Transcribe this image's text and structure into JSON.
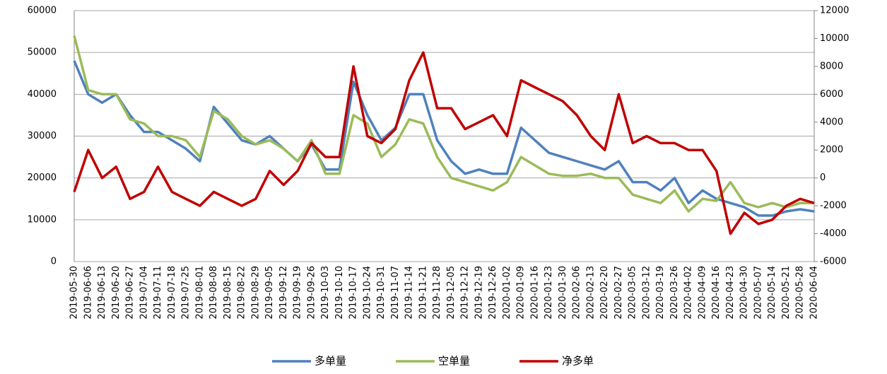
{
  "chart_data": {
    "type": "line",
    "categories": [
      "2019-05-30",
      "2019-06-06",
      "2019-06-13",
      "2019-06-20",
      "2019-06-27",
      "2019-07-04",
      "2019-07-11",
      "2019-07-18",
      "2019-07-25",
      "2019-08-01",
      "2019-08-08",
      "2019-08-15",
      "2019-08-22",
      "2019-08-29",
      "2019-09-05",
      "2019-09-12",
      "2019-09-19",
      "2019-09-26",
      "2019-10-03",
      "2019-10-10",
      "2019-10-17",
      "2019-10-24",
      "2019-10-31",
      "2019-11-07",
      "2019-11-14",
      "2019-11-21",
      "2019-11-28",
      "2019-12-05",
      "2019-12-12",
      "2019-12-19",
      "2019-12-26",
      "2020-01-02",
      "2020-01-09",
      "2020-01-16",
      "2020-01-23",
      "2020-01-30",
      "2020-02-06",
      "2020-02-13",
      "2020-02-20",
      "2020-02-27",
      "2020-03-05",
      "2020-03-12",
      "2020-03-19",
      "2020-03-26",
      "2020-04-02",
      "2020-04-09",
      "2020-04-16",
      "2020-04-23",
      "2020-04-30",
      "2020-05-07",
      "2020-05-14",
      "2020-05-21",
      "2020-05-28",
      "2020-06-04"
    ],
    "series": [
      {
        "name": "多单量",
        "color": "#4f81bd",
        "values": [
          48000,
          40000,
          38000,
          40000,
          35000,
          31000,
          31000,
          29000,
          27000,
          24000,
          37000,
          33000,
          29000,
          28000,
          30000,
          27000,
          24000,
          28000,
          22000,
          22000,
          43000,
          35000,
          29000,
          32000,
          40000,
          40000,
          29000,
          24000,
          21000,
          22000,
          21000,
          21000,
          32000,
          29000,
          26000,
          25000,
          24000,
          23000,
          22000,
          24000,
          19000,
          19000,
          17000,
          20000,
          14000,
          17000,
          15000,
          14000,
          13000,
          11000,
          11000,
          12000,
          12500,
          12000
        ]
      },
      {
        "name": "空单量",
        "color": "#9bbb59",
        "values": [
          54000,
          41000,
          40000,
          40000,
          34000,
          33000,
          30000,
          30000,
          29000,
          25000,
          36000,
          34000,
          30000,
          28000,
          29000,
          27000,
          24000,
          29000,
          21000,
          21000,
          35000,
          33000,
          25000,
          28000,
          34000,
          33000,
          25000,
          20000,
          19000,
          18000,
          17000,
          19000,
          25000,
          23000,
          21000,
          20500,
          20500,
          21000,
          20000,
          20000,
          16000,
          15000,
          14000,
          17000,
          12000,
          15000,
          14500,
          19000,
          14000,
          13000,
          14000,
          13000,
          14000,
          14000
        ]
      },
      {
        "name": "净多单",
        "color": "#c00000",
        "axis": "y2",
        "values": [
          -1000,
          2000,
          0,
          800,
          -1500,
          -1000,
          800,
          -1000,
          -1500,
          -2000,
          -1000,
          -1500,
          -2000,
          -1500,
          500,
          -500,
          500,
          2500,
          1500,
          1500,
          8000,
          3000,
          2500,
          3500,
          7000,
          9000,
          5000,
          5000,
          3500,
          4000,
          4500,
          3000,
          7000,
          6500,
          6000,
          5500,
          4500,
          3000,
          2000,
          6000,
          2500,
          3000,
          2500,
          2500,
          2000,
          2000,
          500,
          -4000,
          -2500,
          -3300,
          -3000,
          -2000,
          -1500,
          -1800
        ]
      }
    ],
    "ylim": [
      0,
      60000
    ],
    "yticks": [
      0,
      10000,
      20000,
      30000,
      40000,
      50000,
      60000
    ],
    "y2lim": [
      -6000,
      12000
    ],
    "y2ticks": [
      -6000,
      -4000,
      -2000,
      0,
      2000,
      4000,
      6000,
      8000,
      10000,
      12000
    ],
    "grid": true,
    "legend": "bottom"
  }
}
